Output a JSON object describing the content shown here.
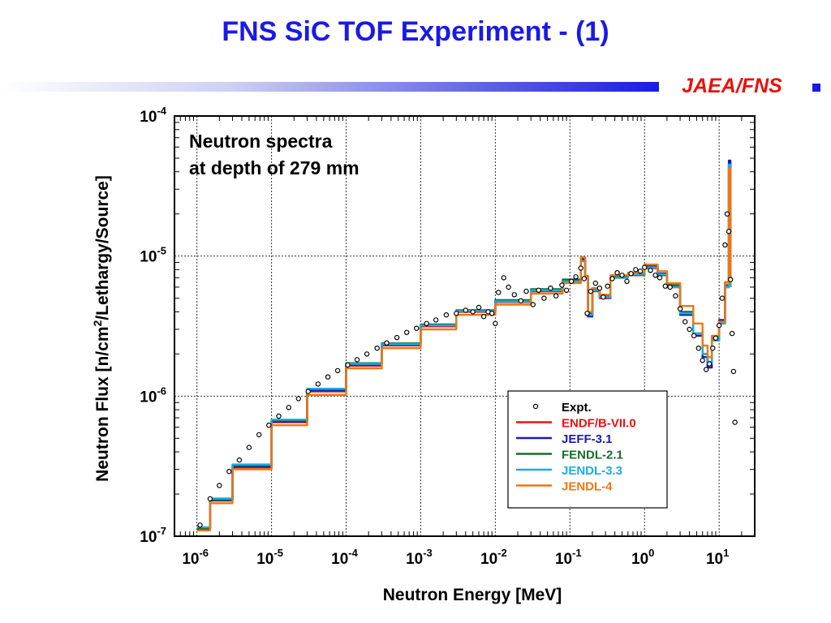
{
  "slide": {
    "title": "FNS SiC TOF Experiment - (1)",
    "org": "JAEA/FNS"
  },
  "colors": {
    "title": "#1a1ae6",
    "org": "#e8120c",
    "grid": "#333333"
  },
  "chart_data": {
    "type": "line",
    "xscale": "log",
    "yscale": "log",
    "xlim": [
      5e-07,
      30
    ],
    "ylim": [
      1e-07,
      0.0001
    ],
    "grid": true,
    "legend_position": "lower-right",
    "xlabel": "Neutron Energy [MeV]",
    "ylabel": "Neutron Flux  [n/cm2/Lethargy/Source]",
    "annotation": [
      "Neutron spectra",
      "at depth of 279 mm"
    ],
    "x_ticks": [
      {
        "value": 1e-06,
        "base": "10",
        "exp": "-6"
      },
      {
        "value": 1e-05,
        "base": "10",
        "exp": "-5"
      },
      {
        "value": 0.0001,
        "base": "10",
        "exp": "-4"
      },
      {
        "value": 0.001,
        "base": "10",
        "exp": "-3"
      },
      {
        "value": 0.01,
        "base": "10",
        "exp": "-2"
      },
      {
        "value": 0.1,
        "base": "10",
        "exp": "-1"
      },
      {
        "value": 1,
        "base": "10",
        "exp": "0"
      },
      {
        "value": 10,
        "base": "10",
        "exp": "1"
      }
    ],
    "y_ticks": [
      {
        "value": 1e-07,
        "base": "10",
        "exp": "-7"
      },
      {
        "value": 1e-06,
        "base": "10",
        "exp": "-6"
      },
      {
        "value": 1e-05,
        "base": "10",
        "exp": "-5"
      },
      {
        "value": 0.0001,
        "base": "10",
        "exp": "-4"
      }
    ],
    "series": [
      {
        "name": "Expt.",
        "kind": "points",
        "color": "#000000",
        "points": [
          [
            1.1e-06,
            1.2e-07
          ],
          [
            1.5e-06,
            1.85e-07
          ],
          [
            2e-06,
            2.3e-07
          ],
          [
            2.7e-06,
            2.9e-07
          ],
          [
            3.7e-06,
            3.5e-07
          ],
          [
            5e-06,
            4.3e-07
          ],
          [
            6.8e-06,
            5.3e-07
          ],
          [
            9.2e-06,
            6.2e-07
          ],
          [
            1.25e-05,
            7.2e-07
          ],
          [
            1.7e-05,
            8.3e-07
          ],
          [
            2.3e-05,
            9.6e-07
          ],
          [
            3.1e-05,
            1.08e-06
          ],
          [
            4.2e-05,
            1.22e-06
          ],
          [
            5.7e-05,
            1.37e-06
          ],
          [
            7.7e-05,
            1.52e-06
          ],
          [
            0.000105,
            1.67e-06
          ],
          [
            0.00014,
            1.82e-06
          ],
          [
            0.00019,
            2e-06
          ],
          [
            0.00026,
            2.2e-06
          ],
          [
            0.00035,
            2.4e-06
          ],
          [
            0.00048,
            2.62e-06
          ],
          [
            0.00065,
            2.85e-06
          ],
          [
            0.00088,
            3.05e-06
          ],
          [
            0.0012,
            3.3e-06
          ],
          [
            0.0016,
            3.5e-06
          ],
          [
            0.0022,
            3.8e-06
          ],
          [
            0.003,
            3.9e-06
          ],
          [
            0.004,
            4.1e-06
          ],
          [
            0.005,
            4e-06
          ],
          [
            0.006,
            4.3e-06
          ],
          [
            0.007,
            3.7e-06
          ],
          [
            0.008,
            4e-06
          ],
          [
            0.009,
            3.9e-06
          ],
          [
            0.01,
            3.3e-06
          ],
          [
            0.011,
            5.5e-06
          ],
          [
            0.013,
            7e-06
          ],
          [
            0.015,
            6e-06
          ],
          [
            0.018,
            5.3e-06
          ],
          [
            0.022,
            4.8e-06
          ],
          [
            0.026,
            5.6e-06
          ],
          [
            0.032,
            4.5e-06
          ],
          [
            0.038,
            5.7e-06
          ],
          [
            0.045,
            5e-06
          ],
          [
            0.055,
            5.9e-06
          ],
          [
            0.065,
            5.2e-06
          ],
          [
            0.078,
            6.2e-06
          ],
          [
            0.09,
            5.7e-06
          ],
          [
            0.105,
            6.6e-06
          ],
          [
            0.12,
            7.1e-06
          ],
          [
            0.14,
            8.2e-06
          ],
          [
            0.155,
            6.9e-06
          ],
          [
            0.17,
            3.9e-06
          ],
          [
            0.19,
            5.6e-06
          ],
          [
            0.22,
            6.4e-06
          ],
          [
            0.25,
            5.9e-06
          ],
          [
            0.28,
            5.1e-06
          ],
          [
            0.32,
            6.1e-06
          ],
          [
            0.37,
            6.9e-06
          ],
          [
            0.43,
            7.6e-06
          ],
          [
            0.5,
            7.3e-06
          ],
          [
            0.58,
            6.6e-06
          ],
          [
            0.66,
            7.5e-06
          ],
          [
            0.76,
            8e-06
          ],
          [
            0.88,
            7.8e-06
          ],
          [
            1.0,
            8.3e-06
          ],
          [
            1.2,
            7.9e-06
          ],
          [
            1.4,
            7.3e-06
          ],
          [
            1.6,
            7e-06
          ],
          [
            1.9,
            6.1e-06
          ],
          [
            2.2,
            6e-06
          ],
          [
            2.6,
            5.2e-06
          ],
          [
            3.0,
            4.2e-06
          ],
          [
            3.5,
            3.4e-06
          ],
          [
            4.0,
            3e-06
          ],
          [
            4.6,
            2.7e-06
          ],
          [
            5.3,
            2.2e-06
          ],
          [
            6.0,
            1.8e-06
          ],
          [
            6.7,
            1.55e-06
          ],
          [
            7.4,
            1.7e-06
          ],
          [
            8.2,
            2.2e-06
          ],
          [
            9.0,
            2.6e-06
          ],
          [
            10.0,
            3.2e-06
          ],
          [
            11.0,
            5e-06
          ],
          [
            12.0,
            1.2e-05
          ],
          [
            12.8,
            2e-05
          ],
          [
            13.5,
            1.5e-05
          ],
          [
            14.2,
            6.8e-06
          ],
          [
            14.9,
            2.8e-06
          ],
          [
            15.6,
            1.5e-06
          ],
          [
            16.3,
            6.5e-07
          ]
        ]
      },
      {
        "name": "ENDF/B-VII.0",
        "kind": "line",
        "color": "#ee1111",
        "points": [
          [
            1e-06,
            1.15e-07
          ],
          [
            1.5e-06,
            1.8e-07
          ],
          [
            3e-06,
            3.1e-07
          ],
          [
            1e-05,
            6.5e-07
          ],
          [
            3e-05,
            1.08e-06
          ],
          [
            0.0001,
            1.65e-06
          ],
          [
            0.0003,
            2.3e-06
          ],
          [
            0.001,
            3.15e-06
          ],
          [
            0.003,
            4e-06
          ],
          [
            0.01,
            4.7e-06
          ],
          [
            0.03,
            5.6e-06
          ],
          [
            0.08,
            6.6e-06
          ],
          [
            0.14,
            9.2e-06
          ],
          [
            0.16,
            7e-06
          ],
          [
            0.175,
            3.8e-06
          ],
          [
            0.2,
            5.6e-06
          ],
          [
            0.25,
            5e-06
          ],
          [
            0.35,
            7e-06
          ],
          [
            0.6,
            7.3e-06
          ],
          [
            1.0,
            8.2e-06
          ],
          [
            1.5,
            7.4e-06
          ],
          [
            2.0,
            6e-06
          ],
          [
            3.0,
            3.9e-06
          ],
          [
            4.5,
            2.8e-06
          ],
          [
            6.0,
            2e-06
          ],
          [
            7.0,
            1.7e-06
          ],
          [
            8.0,
            2.5e-06
          ],
          [
            10.0,
            3.3e-06
          ],
          [
            12.0,
            6e-06
          ],
          [
            13.5,
            4.5e-05
          ],
          [
            14.2,
            6e-06
          ]
        ]
      },
      {
        "name": "JEFF-3.1",
        "kind": "line",
        "color": "#1a1ab8",
        "points": [
          [
            1e-06,
            1.13e-07
          ],
          [
            1.5e-06,
            1.8e-07
          ],
          [
            3e-06,
            3.15e-07
          ],
          [
            1e-05,
            6.6e-07
          ],
          [
            3e-05,
            1.1e-06
          ],
          [
            0.0001,
            1.68e-06
          ],
          [
            0.0003,
            2.33e-06
          ],
          [
            0.001,
            3.2e-06
          ],
          [
            0.003,
            4.05e-06
          ],
          [
            0.01,
            4.8e-06
          ],
          [
            0.03,
            5.7e-06
          ],
          [
            0.08,
            6.7e-06
          ],
          [
            0.14,
            9.5e-06
          ],
          [
            0.16,
            7.2e-06
          ],
          [
            0.175,
            3.7e-06
          ],
          [
            0.2,
            5.7e-06
          ],
          [
            0.25,
            5.1e-06
          ],
          [
            0.35,
            7.2e-06
          ],
          [
            0.6,
            7.5e-06
          ],
          [
            1.0,
            8.5e-06
          ],
          [
            1.5,
            7.5e-06
          ],
          [
            2.0,
            6.1e-06
          ],
          [
            3.0,
            3.8e-06
          ],
          [
            4.5,
            2.7e-06
          ],
          [
            6.0,
            1.9e-06
          ],
          [
            7.0,
            1.6e-06
          ],
          [
            8.0,
            2.6e-06
          ],
          [
            10.0,
            3.5e-06
          ],
          [
            12.0,
            6.5e-06
          ],
          [
            13.5,
            4.8e-05
          ],
          [
            14.2,
            6e-06
          ]
        ]
      },
      {
        "name": "FENDL-2.1",
        "kind": "line",
        "color": "#1a6b2a",
        "points": [
          [
            1e-06,
            1.14e-07
          ],
          [
            1.5e-06,
            1.82e-07
          ],
          [
            3e-06,
            3.2e-07
          ],
          [
            1e-05,
            6.7e-07
          ],
          [
            3e-05,
            1.12e-06
          ],
          [
            0.0001,
            1.72e-06
          ],
          [
            0.0003,
            2.38e-06
          ],
          [
            0.001,
            3.25e-06
          ],
          [
            0.003,
            4.1e-06
          ],
          [
            0.01,
            4.85e-06
          ],
          [
            0.03,
            5.8e-06
          ],
          [
            0.08,
            6.8e-06
          ],
          [
            0.14,
            9.3e-06
          ],
          [
            0.16,
            7.1e-06
          ],
          [
            0.175,
            3.9e-06
          ],
          [
            0.2,
            5.8e-06
          ],
          [
            0.25,
            5.2e-06
          ],
          [
            0.35,
            7.1e-06
          ],
          [
            0.6,
            7.4e-06
          ],
          [
            1.0,
            8.3e-06
          ],
          [
            1.5,
            7.3e-06
          ],
          [
            2.0,
            6.2e-06
          ],
          [
            3.0,
            4e-06
          ],
          [
            4.5,
            2.8e-06
          ],
          [
            6.0,
            2e-06
          ],
          [
            7.0,
            1.75e-06
          ],
          [
            8.0,
            2.5e-06
          ],
          [
            10.0,
            3.3e-06
          ],
          [
            12.0,
            6.2e-06
          ],
          [
            13.5,
            4.4e-05
          ],
          [
            14.2,
            6e-06
          ]
        ]
      },
      {
        "name": "JENDL-3.3",
        "kind": "line",
        "color": "#19aee0",
        "points": [
          [
            1e-06,
            1.16e-07
          ],
          [
            1.5e-06,
            1.86e-07
          ],
          [
            3e-06,
            3.25e-07
          ],
          [
            1e-05,
            6.8e-07
          ],
          [
            3e-05,
            1.13e-06
          ],
          [
            0.0001,
            1.7e-06
          ],
          [
            0.0003,
            2.35e-06
          ],
          [
            0.001,
            3.2e-06
          ],
          [
            0.003,
            4.05e-06
          ],
          [
            0.01,
            4.75e-06
          ],
          [
            0.03,
            5.7e-06
          ],
          [
            0.08,
            6.6e-06
          ],
          [
            0.14,
            9.2e-06
          ],
          [
            0.16,
            7e-06
          ],
          [
            0.175,
            3.8e-06
          ],
          [
            0.2,
            5.7e-06
          ],
          [
            0.25,
            5.1e-06
          ],
          [
            0.35,
            7e-06
          ],
          [
            0.6,
            7.4e-06
          ],
          [
            1.0,
            8.3e-06
          ],
          [
            1.5,
            7.4e-06
          ],
          [
            2.0,
            6e-06
          ],
          [
            3.0,
            3.9e-06
          ],
          [
            4.5,
            2.8e-06
          ],
          [
            6.0,
            2e-06
          ],
          [
            7.0,
            1.7e-06
          ],
          [
            8.0,
            2.5e-06
          ],
          [
            10.0,
            3.3e-06
          ],
          [
            12.0,
            6e-06
          ],
          [
            13.5,
            4.5e-05
          ],
          [
            14.2,
            6e-06
          ]
        ]
      },
      {
        "name": "JENDL-4",
        "kind": "line",
        "color": "#ee7711",
        "points": [
          [
            1e-06,
            1.1e-07
          ],
          [
            1.5e-06,
            1.72e-07
          ],
          [
            3e-06,
            3e-07
          ],
          [
            1e-05,
            6.2e-07
          ],
          [
            3e-05,
            1.02e-06
          ],
          [
            0.0001,
            1.58e-06
          ],
          [
            0.0003,
            2.2e-06
          ],
          [
            0.001,
            3e-06
          ],
          [
            0.003,
            3.8e-06
          ],
          [
            0.01,
            4.5e-06
          ],
          [
            0.03,
            5.4e-06
          ],
          [
            0.08,
            6.4e-06
          ],
          [
            0.14,
            9.8e-06
          ],
          [
            0.16,
            7.2e-06
          ],
          [
            0.175,
            4e-06
          ],
          [
            0.2,
            5.9e-06
          ],
          [
            0.25,
            5.3e-06
          ],
          [
            0.35,
            7.3e-06
          ],
          [
            0.6,
            7.6e-06
          ],
          [
            1.0,
            8.7e-06
          ],
          [
            1.5,
            7.8e-06
          ],
          [
            2.0,
            6.4e-06
          ],
          [
            3.0,
            4.4e-06
          ],
          [
            4.5,
            3.3e-06
          ],
          [
            6.0,
            2.3e-06
          ],
          [
            7.0,
            1.9e-06
          ],
          [
            8.0,
            2.7e-06
          ],
          [
            10.0,
            3.4e-06
          ],
          [
            12.0,
            6.5e-06
          ],
          [
            13.5,
            4.2e-05
          ],
          [
            14.2,
            6.2e-06
          ]
        ]
      }
    ]
  }
}
